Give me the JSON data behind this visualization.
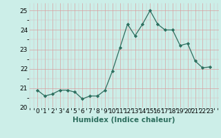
{
  "x": [
    0,
    1,
    2,
    3,
    4,
    5,
    6,
    7,
    8,
    9,
    10,
    11,
    12,
    13,
    14,
    15,
    16,
    17,
    18,
    19,
    20,
    21,
    22,
    23
  ],
  "y": [
    20.9,
    20.6,
    20.7,
    20.9,
    20.9,
    20.8,
    20.45,
    20.6,
    20.6,
    20.9,
    21.9,
    23.1,
    24.3,
    23.7,
    24.3,
    25.0,
    24.3,
    24.0,
    24.0,
    23.2,
    23.3,
    22.4,
    22.05,
    22.1
  ],
  "line_color": "#2d6e5e",
  "marker": "D",
  "marker_size": 2.2,
  "bg_color": "#cceee8",
  "grid_color_major": "#d8a0a0",
  "grid_color_minor": "#d8b8b8",
  "xlabel": "Humidex (Indice chaleur)",
  "ylim": [
    20.0,
    25.4
  ],
  "yticks": [
    20,
    21,
    22,
    23,
    24,
    25
  ],
  "xticks": [
    0,
    1,
    2,
    3,
    4,
    5,
    6,
    7,
    8,
    9,
    10,
    11,
    12,
    13,
    14,
    15,
    16,
    17,
    18,
    19,
    20,
    21,
    22,
    23
  ],
  "xlabel_fontsize": 7.5,
  "tick_fontsize": 6.5
}
